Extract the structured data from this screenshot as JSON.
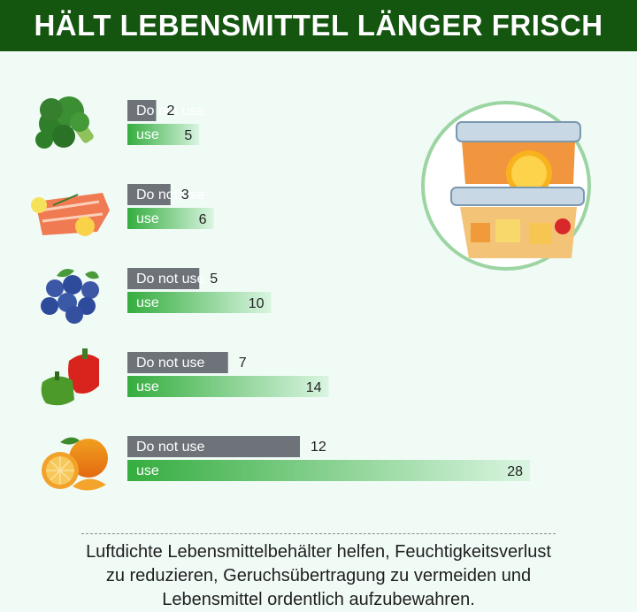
{
  "header": {
    "title": "HÄLT LEBENSMITTEL LÄNGER FRISCH"
  },
  "colors": {
    "header_bg": "#14550f",
    "gray_bar": "#6d7379",
    "green_start": "#35ad3f",
    "green_end": "#daf5e1"
  },
  "chart_data": {
    "type": "bar",
    "orientation": "horizontal",
    "categories": [
      "broccoli",
      "salmon",
      "blueberries",
      "peppers",
      "oranges"
    ],
    "series": [
      {
        "name": "Do not use",
        "values": [
          2,
          3,
          5,
          7,
          12
        ]
      },
      {
        "name": "use",
        "values": [
          5,
          6,
          10,
          14,
          28
        ]
      }
    ],
    "title": "",
    "xlabel": "",
    "ylabel": "",
    "xlim": [
      0,
      28
    ],
    "grid": false,
    "legend": "none"
  },
  "footer": {
    "lines": [
      "Luftdichte Lebensmittelbehälter helfen, Feuchtigkeitsverlust",
      "zu reduzieren, Geruchsübertragung zu vermeiden und",
      "Lebensmittel ordentlich aufzubewahren."
    ]
  }
}
